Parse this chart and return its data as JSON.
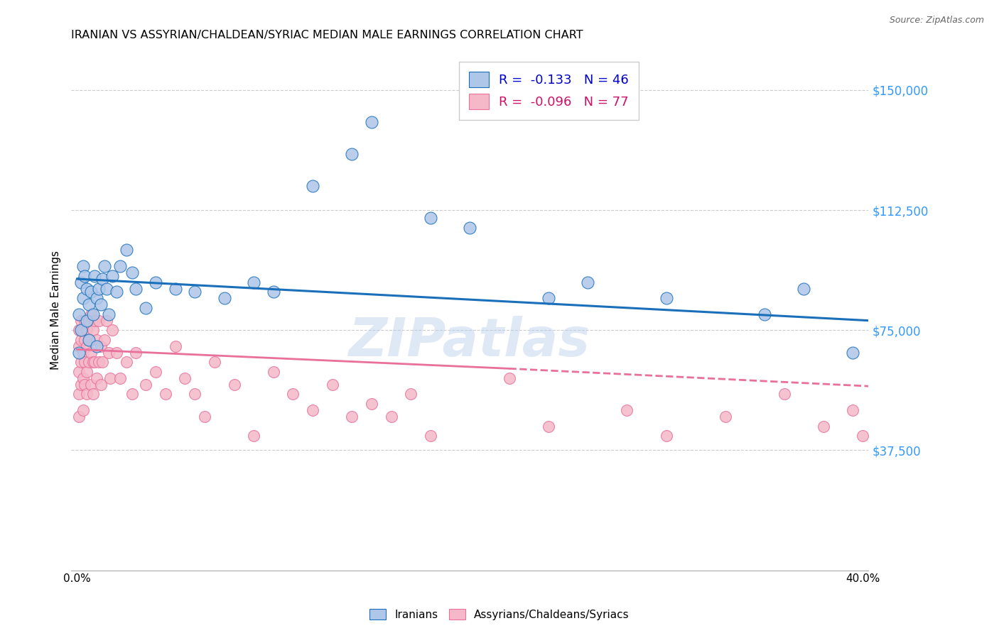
{
  "title": "IRANIAN VS ASSYRIAN/CHALDEAN/SYRIAC MEDIAN MALE EARNINGS CORRELATION CHART",
  "source": "Source: ZipAtlas.com",
  "ylabel": "Median Male Earnings",
  "ytick_labels": [
    "$37,500",
    "$75,000",
    "$112,500",
    "$150,000"
  ],
  "ytick_values": [
    37500,
    75000,
    112500,
    150000
  ],
  "ylim": [
    0,
    162500
  ],
  "xlim": [
    -0.003,
    0.403
  ],
  "watermark": "ZIPatlas",
  "legend_r1": "R =  -0.133   N = 46",
  "legend_r2": "R =  -0.096   N = 77",
  "color_iranian": "#aec6e8",
  "color_assyrian": "#f4b8c8",
  "color_trendline_iranian": "#1a6fba",
  "color_trendline_assyrian": "#e8709a",
  "trendline_iranian_x0": 0.0,
  "trendline_iranian_y0": 91000,
  "trendline_iranian_x1": 0.403,
  "trendline_iranian_y1": 78000,
  "trendline_assyrian_solid_x0": 0.0,
  "trendline_assyrian_solid_y0": 69000,
  "trendline_assyrian_solid_x1": 0.22,
  "trendline_assyrian_solid_y1": 63000,
  "trendline_assyrian_dash_x0": 0.22,
  "trendline_assyrian_dash_y0": 63000,
  "trendline_assyrian_dash_x1": 0.403,
  "trendline_assyrian_dash_y1": 57500,
  "iranians_x": [
    0.001,
    0.001,
    0.002,
    0.002,
    0.003,
    0.003,
    0.004,
    0.005,
    0.005,
    0.006,
    0.006,
    0.007,
    0.008,
    0.009,
    0.01,
    0.01,
    0.011,
    0.012,
    0.013,
    0.014,
    0.015,
    0.016,
    0.018,
    0.02,
    0.022,
    0.025,
    0.028,
    0.03,
    0.035,
    0.04,
    0.05,
    0.06,
    0.075,
    0.09,
    0.1,
    0.12,
    0.14,
    0.15,
    0.18,
    0.2,
    0.24,
    0.26,
    0.3,
    0.35,
    0.37,
    0.395
  ],
  "iranians_y": [
    68000,
    80000,
    75000,
    90000,
    85000,
    95000,
    92000,
    88000,
    78000,
    83000,
    72000,
    87000,
    80000,
    92000,
    85000,
    70000,
    88000,
    83000,
    91000,
    95000,
    88000,
    80000,
    92000,
    87000,
    95000,
    100000,
    93000,
    88000,
    82000,
    90000,
    88000,
    87000,
    85000,
    90000,
    87000,
    120000,
    130000,
    140000,
    110000,
    107000,
    85000,
    90000,
    85000,
    80000,
    88000,
    68000
  ],
  "assyrians_x": [
    0.001,
    0.001,
    0.001,
    0.001,
    0.001,
    0.002,
    0.002,
    0.002,
    0.002,
    0.003,
    0.003,
    0.003,
    0.003,
    0.004,
    0.004,
    0.004,
    0.004,
    0.005,
    0.005,
    0.005,
    0.005,
    0.006,
    0.006,
    0.006,
    0.007,
    0.007,
    0.007,
    0.008,
    0.008,
    0.008,
    0.009,
    0.009,
    0.01,
    0.01,
    0.011,
    0.011,
    0.012,
    0.012,
    0.013,
    0.014,
    0.015,
    0.016,
    0.017,
    0.018,
    0.02,
    0.022,
    0.025,
    0.028,
    0.03,
    0.035,
    0.04,
    0.045,
    0.05,
    0.055,
    0.06,
    0.065,
    0.07,
    0.08,
    0.09,
    0.1,
    0.11,
    0.12,
    0.13,
    0.14,
    0.15,
    0.16,
    0.17,
    0.18,
    0.22,
    0.24,
    0.28,
    0.3,
    0.33,
    0.36,
    0.38,
    0.395,
    0.4
  ],
  "assyrians_y": [
    55000,
    62000,
    70000,
    75000,
    48000,
    58000,
    65000,
    72000,
    78000,
    60000,
    68000,
    75000,
    50000,
    65000,
    72000,
    78000,
    58000,
    70000,
    75000,
    62000,
    55000,
    72000,
    78000,
    65000,
    80000,
    68000,
    58000,
    75000,
    65000,
    55000,
    78000,
    65000,
    72000,
    60000,
    78000,
    65000,
    70000,
    58000,
    65000,
    72000,
    78000,
    68000,
    60000,
    75000,
    68000,
    60000,
    65000,
    55000,
    68000,
    58000,
    62000,
    55000,
    70000,
    60000,
    55000,
    48000,
    65000,
    58000,
    42000,
    62000,
    55000,
    50000,
    58000,
    48000,
    52000,
    48000,
    55000,
    42000,
    60000,
    45000,
    50000,
    42000,
    48000,
    55000,
    45000,
    50000,
    42000
  ]
}
